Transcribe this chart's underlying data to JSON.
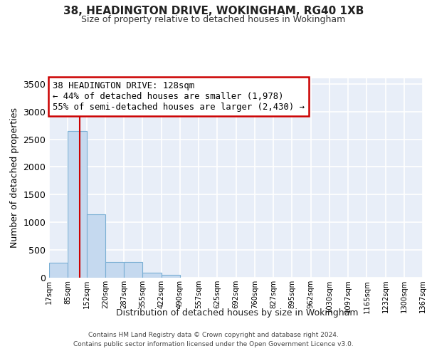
{
  "title": "38, HEADINGTON DRIVE, WOKINGHAM, RG40 1XB",
  "subtitle": "Size of property relative to detached houses in Wokingham",
  "xlabel": "Distribution of detached houses by size in Wokingham",
  "ylabel": "Number of detached properties",
  "bar_color": "#c5d9ef",
  "bar_edge_color": "#7aafd4",
  "background_color": "#e8eef8",
  "grid_color": "#ffffff",
  "xlim": [
    17,
    1367
  ],
  "ylim": [
    0,
    3600
  ],
  "yticks": [
    0,
    500,
    1000,
    1500,
    2000,
    2500,
    3000,
    3500
  ],
  "bin_edges": [
    17,
    85,
    152,
    220,
    287,
    355,
    422,
    490,
    557,
    625,
    692,
    760,
    827,
    895,
    962,
    1030,
    1097,
    1165,
    1232,
    1300,
    1367
  ],
  "bin_labels": [
    "17sqm",
    "85sqm",
    "152sqm",
    "220sqm",
    "287sqm",
    "355sqm",
    "422sqm",
    "490sqm",
    "557sqm",
    "625sqm",
    "692sqm",
    "760sqm",
    "827sqm",
    "895sqm",
    "962sqm",
    "1030sqm",
    "1097sqm",
    "1165sqm",
    "1232sqm",
    "1300sqm",
    "1367sqm"
  ],
  "bar_heights": [
    270,
    2650,
    1140,
    280,
    280,
    90,
    55,
    0,
    0,
    0,
    0,
    0,
    0,
    0,
    0,
    0,
    0,
    0,
    0,
    0
  ],
  "property_size": 128,
  "vline_color": "#cc0000",
  "annotation_line1": "38 HEADINGTON DRIVE: 128sqm",
  "annotation_line2": "← 44% of detached houses are smaller (1,978)",
  "annotation_line3": "55% of semi-detached houses are larger (2,430) →",
  "annotation_box_color": "#ffffff",
  "annotation_box_edge_color": "#cc0000",
  "footer_line1": "Contains HM Land Registry data © Crown copyright and database right 2024.",
  "footer_line2": "Contains public sector information licensed under the Open Government Licence v3.0."
}
